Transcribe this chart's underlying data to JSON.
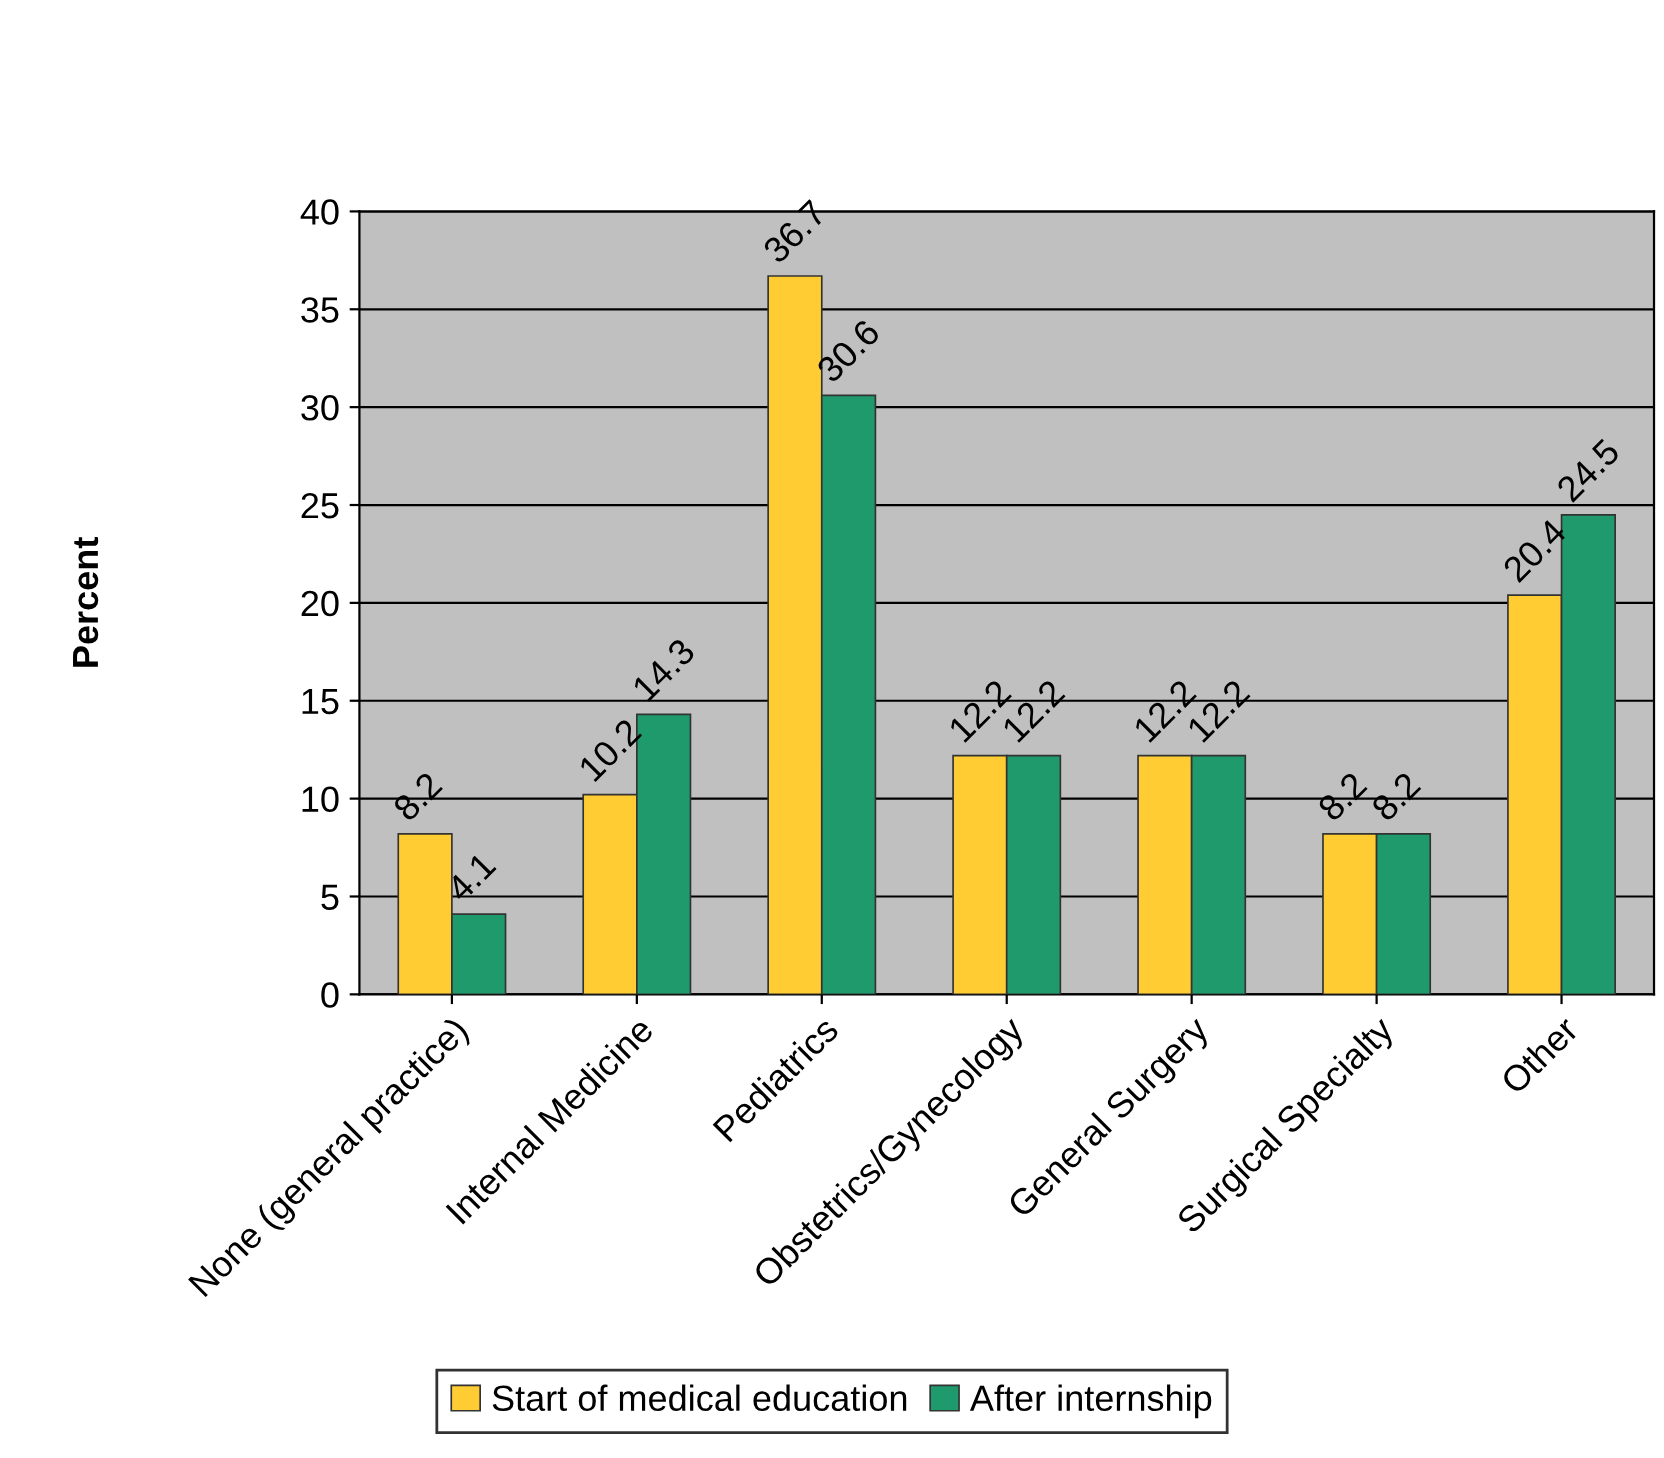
{
  "chart_data": {
    "type": "bar",
    "ylabel": "Percent",
    "categories": [
      "None (general practice)",
      "Internal Medicine",
      "Pediatrics",
      "Obstetrics/Gynecology",
      "General Surgery",
      "Surgical Specialty",
      "Other"
    ],
    "series": [
      {
        "name": "Start of medical education",
        "color": "#ffcc33",
        "values": [
          8.2,
          10.2,
          36.7,
          12.2,
          12.2,
          8.2,
          20.4
        ]
      },
      {
        "name": "After internship",
        "color": "#1f9a6c",
        "values": [
          4.1,
          14.3,
          30.6,
          12.2,
          12.2,
          8.2,
          24.5
        ]
      }
    ],
    "ylim": [
      0,
      40
    ],
    "yticks": [
      0,
      5,
      10,
      15,
      20,
      25,
      30,
      35,
      40
    ],
    "grid": "y",
    "legend": "bottom",
    "data_labels": true
  }
}
